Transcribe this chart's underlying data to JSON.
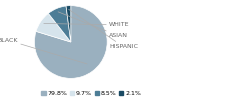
{
  "labels": [
    "BLACK",
    "WHITE",
    "ASIAN",
    "HISPANIC"
  ],
  "values": [
    79.8,
    9.7,
    8.5,
    2.1
  ],
  "colors": [
    "#9ab0bf",
    "#d6e4ec",
    "#4d7d96",
    "#1a4a63"
  ],
  "legend_labels": [
    "79.8%",
    "9.7%",
    "8.5%",
    "2.1%"
  ],
  "legend_colors": [
    "#9ab0bf",
    "#d6e4ec",
    "#4d7d96",
    "#1a4a63"
  ],
  "label_fontsize": 4.5,
  "legend_fontsize": 4.5,
  "startangle": 90,
  "background_color": "#ffffff",
  "text_color": "#666666"
}
